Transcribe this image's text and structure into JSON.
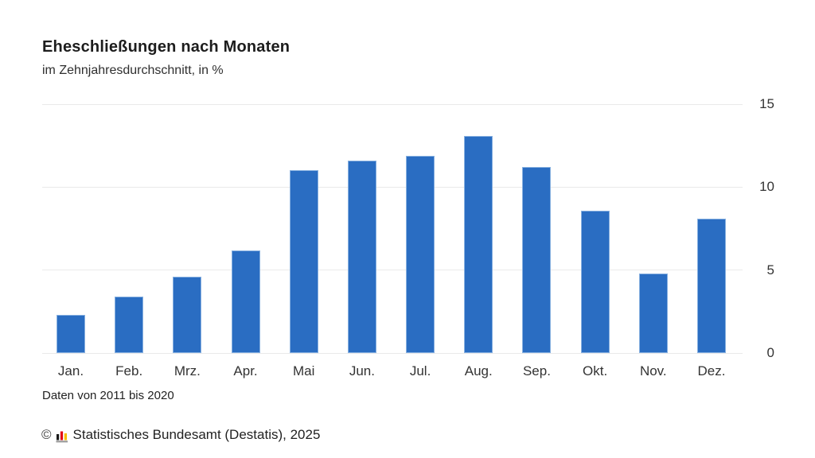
{
  "header": {
    "title": "Eheschließungen nach Monaten",
    "subtitle": "im Zehnjahresdurchschnitt, in %"
  },
  "chart_data": {
    "type": "bar",
    "title": "Eheschließungen nach Monaten",
    "subtitle": "im Zehnjahresdurchschnitt, in %",
    "categories": [
      "Jan.",
      "Feb.",
      "Mrz.",
      "Apr.",
      "Mai",
      "Jun.",
      "Jul.",
      "Aug.",
      "Sep.",
      "Okt.",
      "Nov.",
      "Dez."
    ],
    "values": [
      2.3,
      3.4,
      4.6,
      6.2,
      11.0,
      11.6,
      11.9,
      13.1,
      11.2,
      8.6,
      4.8,
      8.1
    ],
    "xlabel": "",
    "ylabel": "",
    "ylim": [
      0,
      15
    ],
    "yticks": [
      0,
      5,
      10,
      15
    ],
    "grid": true,
    "legend": "none",
    "bar_color": "#2a6dc2",
    "bar_border_color": "#87b0e0",
    "gridline_color": "#eaeaea"
  },
  "footnote": {
    "data_note": "Daten von 2011 bis 2020"
  },
  "source": {
    "copyright": "©",
    "text": "Statistisches Bundesamt (Destatis), 2025",
    "logo_colors": {
      "bar1": "#1a1a1a",
      "bar2": "#e30613",
      "bar3": "#f6bd00",
      "base": "#9b9b9b"
    }
  }
}
